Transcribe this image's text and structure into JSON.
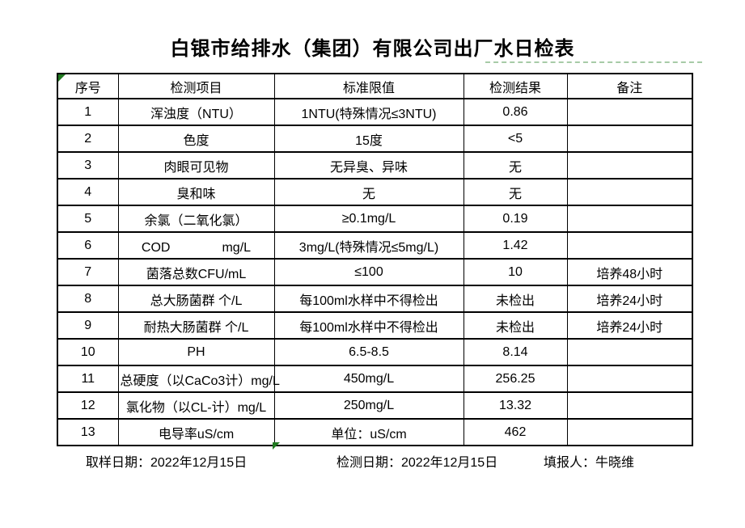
{
  "title": "白银市给排水（集团）有限公司出厂水日检表",
  "table": {
    "headers": [
      "序号",
      "检测项目",
      "标准限值",
      "检测结果",
      "备注"
    ],
    "rows": [
      [
        "1",
        "浑浊度（NTU）",
        "1NTU(特殊情况≤3NTU)",
        "0.86",
        ""
      ],
      [
        "2",
        "色度",
        "15度",
        "<5",
        ""
      ],
      [
        "3",
        "肉眼可见物",
        "无异臭、异味",
        "无",
        ""
      ],
      [
        "4",
        "臭和味",
        "无",
        "无",
        ""
      ],
      [
        "5",
        "余氯（二氧化氯）",
        "≥0.1mg/L",
        "0.19",
        ""
      ],
      [
        "6",
        "COD　　　　mg/L",
        "3mg/L(特殊情况≤5mg/L)",
        "1.42",
        ""
      ],
      [
        "7",
        "菌落总数CFU/mL",
        "≤100",
        "10",
        "培养48小时"
      ],
      [
        "8",
        "总大肠菌群 个/L",
        "每100ml水样中不得检出",
        "未检出",
        "培养24小时"
      ],
      [
        "9",
        "耐热大肠菌群 个/L",
        "每100ml水样中不得检出",
        "未检出",
        "培养24小时"
      ],
      [
        "10",
        "PH",
        "6.5-8.5",
        "8.14",
        ""
      ],
      [
        "11",
        "总硬度（以CaCo3计）mg/L",
        "450mg/L",
        "256.25",
        ""
      ],
      [
        "12",
        "氯化物（以CL-计）mg/L",
        "250mg/L",
        "13.32",
        ""
      ],
      [
        "13",
        "电导率uS/cm",
        "单位：uS/cm",
        "462",
        ""
      ]
    ]
  },
  "footer": {
    "sampling_date": "取样日期：2022年12月15日",
    "test_date": "检测日期：2022年12月15日",
    "reporter": "填报人：牛晓维"
  },
  "colors": {
    "border": "#000000",
    "text": "#000000",
    "background": "#ffffff",
    "marker_green": "#217a21",
    "pagebreak_green": "#a7cba7"
  }
}
